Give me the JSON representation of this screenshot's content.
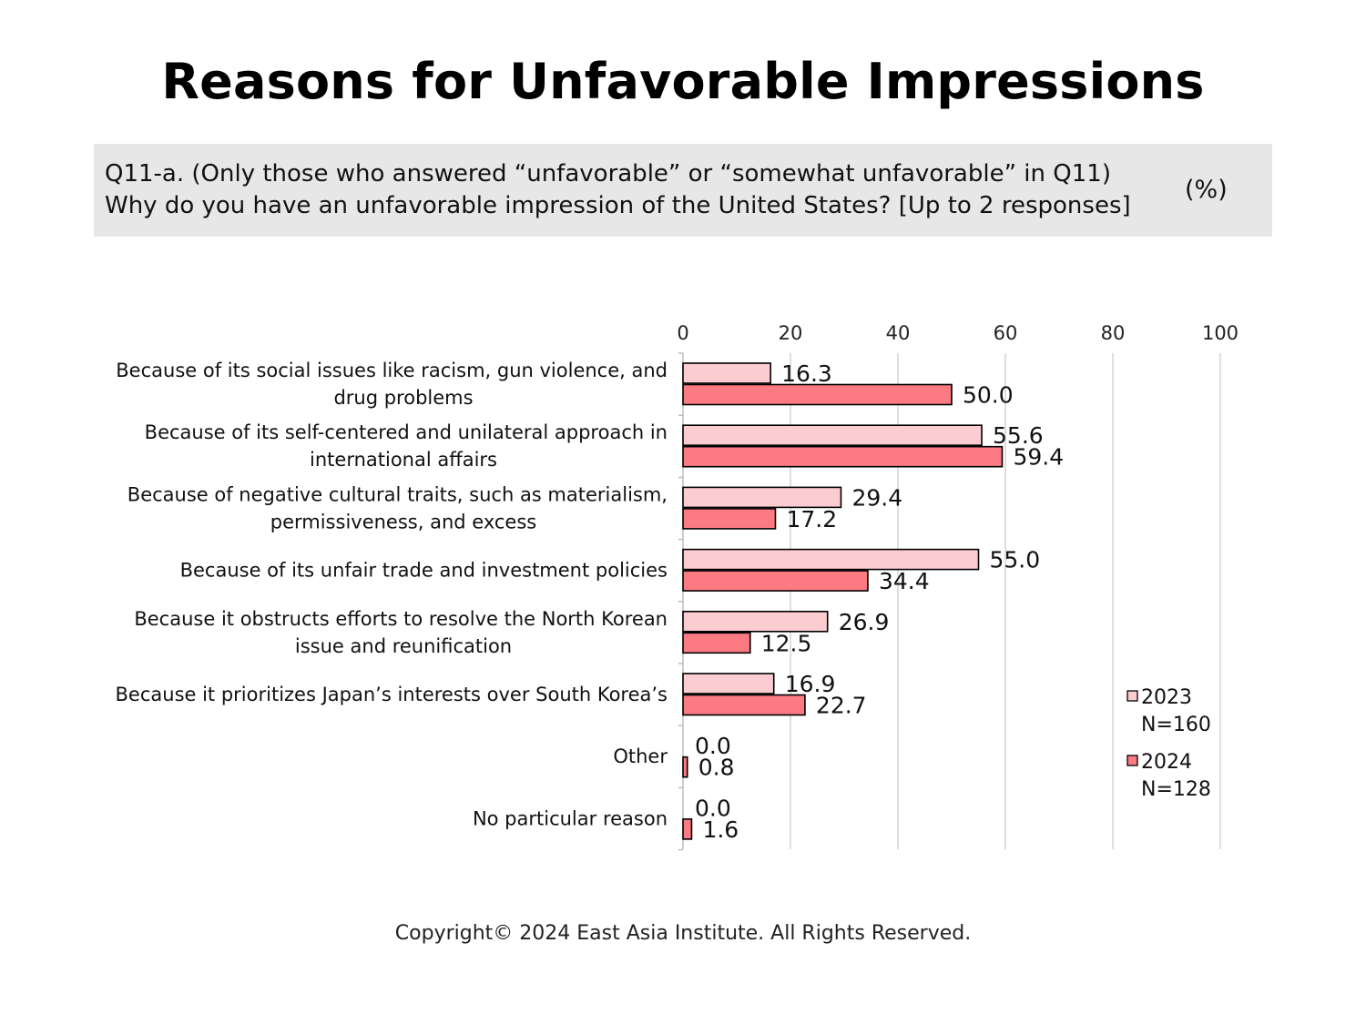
{
  "title": "Reasons for Unfavorable Impressions",
  "question": {
    "line1": "Q11-a. (Only those who answered “unfavorable” or “somewhat unfavorable” in Q11)",
    "line2": "Why do you have an unfavorable impression of the United States? [Up to 2 responses]",
    "unit": "(%)"
  },
  "footer": {
    "copyright": "Copyright© 2024 East Asia Institute. All Rights Reserved."
  },
  "chart_data": {
    "type": "bar",
    "orientation": "horizontal",
    "title": "",
    "xlabel": "",
    "ylabel": "",
    "xlim": [
      0,
      100
    ],
    "ticks": [
      0,
      20,
      40,
      60,
      80,
      100
    ],
    "tick_labels": [
      "0",
      "20",
      "40",
      "60",
      "80",
      "100"
    ],
    "grid": true,
    "legend_position": "bottom-right",
    "categories": [
      [
        "Because of its social issues like racism, gun violence, and",
        "drug problems"
      ],
      [
        "Because of its self-centered and unilateral approach in",
        "international affairs"
      ],
      [
        "Because of negative cultural traits, such as materialism,",
        "permissiveness, and excess"
      ],
      [
        "Because of its unfair trade and investment policies"
      ],
      [
        "Because it obstructs efforts to resolve the North Korean",
        "issue and reunification"
      ],
      [
        "Because it prioritizes Japan’s interests over South Korea’s"
      ],
      [
        "Other"
      ],
      [
        "No particular reason"
      ]
    ],
    "series": [
      {
        "name": "2023",
        "sample": "N=160",
        "color": "#fccdd0",
        "values": [
          16.3,
          55.6,
          29.4,
          55.0,
          26.9,
          16.9,
          0.0,
          0.0
        ],
        "labels": [
          "16.3",
          "55.6",
          "29.4",
          "55.0",
          "26.9",
          "16.9",
          "0.0",
          "0.0"
        ]
      },
      {
        "name": "2024",
        "sample": "N=128",
        "color": "#fc7b82",
        "values": [
          50.0,
          59.4,
          17.2,
          34.4,
          12.5,
          22.7,
          0.8,
          1.6
        ],
        "labels": [
          "50.0",
          "59.4",
          "17.2",
          "34.4",
          "12.5",
          "22.7",
          "0.8",
          "1.6"
        ]
      }
    ]
  }
}
